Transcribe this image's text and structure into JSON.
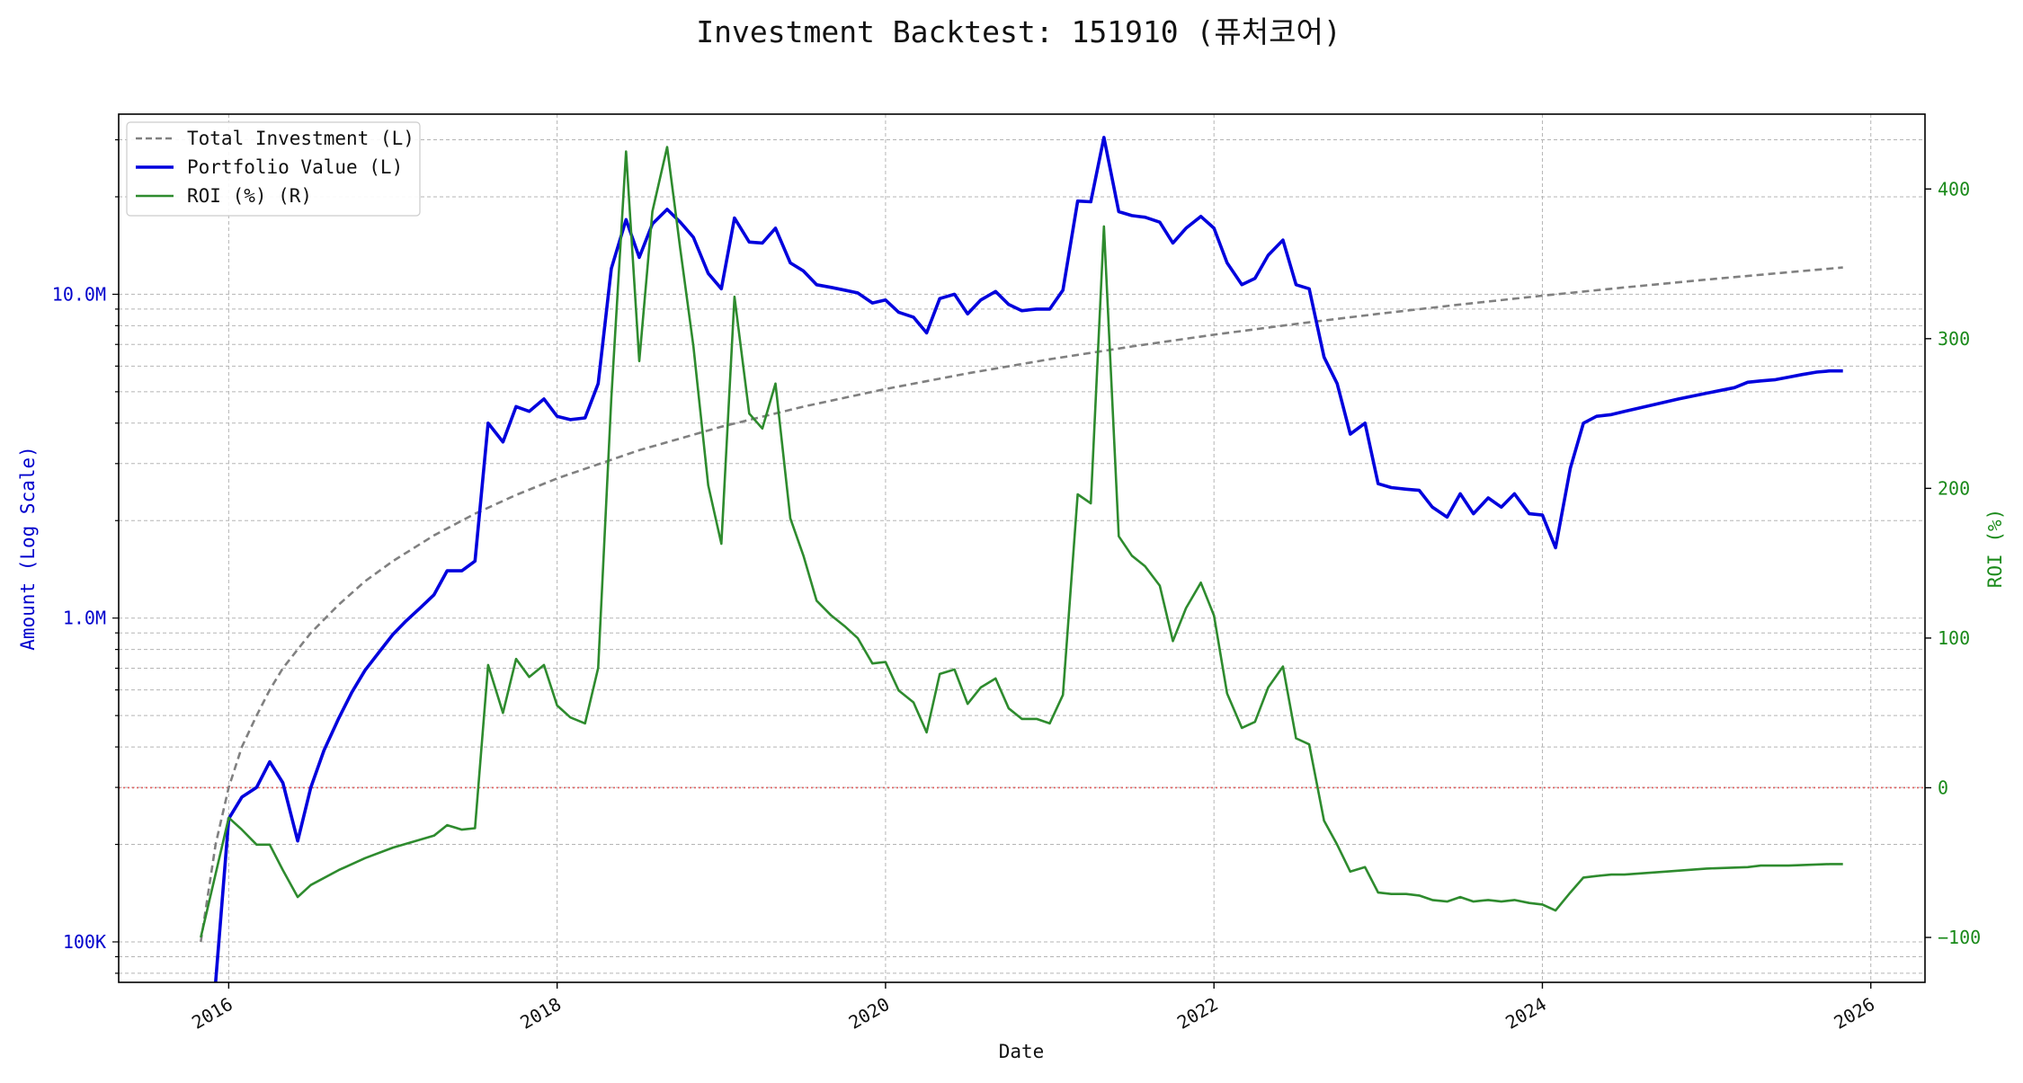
{
  "chart_data": {
    "type": "line",
    "title": "Investment Backtest: 151910 (퓨처코어)",
    "xlabel": "Date",
    "ylabel_left": "Amount (Log Scale)",
    "ylabel_right": "ROI (%)",
    "x_ticks": [
      "2016",
      "2018",
      "2020",
      "2022",
      "2024",
      "2026"
    ],
    "y_left_ticks": [
      "100K",
      "1.0M",
      "10.0M"
    ],
    "y_right_ticks": [
      "−100",
      "0",
      "100",
      "200",
      "300",
      "400"
    ],
    "y_left_scale": "log",
    "y_left_range": [
      75000,
      36000000
    ],
    "y_right_range": [
      -130,
      450
    ],
    "x_range": [
      2015.33,
      2026.33
    ],
    "grid": true,
    "legend_position": "top-left",
    "zero_line": {
      "axis": "right",
      "value": 0,
      "color": "#e06060"
    },
    "colors": {
      "total": "#808080",
      "portfolio": "#0000dd",
      "roi": "#2e8b2e"
    },
    "series": [
      {
        "name": "Total Investment (L)",
        "axis": "left",
        "style": "dashed",
        "x": [
          2015.83,
          2015.92,
          2016.0,
          2016.08,
          2016.17,
          2016.25,
          2016.33,
          2016.42,
          2016.5,
          2016.67,
          2016.83,
          2017.0,
          2017.25,
          2017.5,
          2017.75,
          2018.0,
          2018.5,
          2019.0,
          2019.5,
          2020.0,
          2020.5,
          2021.0,
          2021.5,
          2022.0,
          2022.5,
          2023.0,
          2023.5,
          2024.0,
          2024.5,
          2025.0,
          2025.5,
          2025.83
        ],
        "y": [
          100000,
          200000,
          300000,
          400000,
          500000,
          600000,
          700000,
          800000,
          900000,
          1100000,
          1300000,
          1500000,
          1800000,
          2100000,
          2400000,
          2700000,
          3300000,
          3900000,
          4500000,
          5100000,
          5700000,
          6300000,
          6900000,
          7500000,
          8100000,
          8700000,
          9300000,
          9900000,
          10500000,
          11100000,
          11700000,
          12100000
        ]
      },
      {
        "name": "Portfolio Value (L)",
        "axis": "left",
        "style": "solid",
        "x": [
          2015.92,
          2016.0,
          2016.08,
          2016.17,
          2016.25,
          2016.33,
          2016.42,
          2016.5,
          2016.58,
          2016.67,
          2016.75,
          2016.83,
          2016.92,
          2017.0,
          2017.08,
          2017.17,
          2017.25,
          2017.33,
          2017.42,
          2017.5,
          2017.58,
          2017.67,
          2017.75,
          2017.83,
          2017.92,
          2018.0,
          2018.08,
          2018.17,
          2018.25,
          2018.33,
          2018.42,
          2018.5,
          2018.58,
          2018.67,
          2018.75,
          2018.83,
          2018.92,
          2019.0,
          2019.08,
          2019.17,
          2019.25,
          2019.33,
          2019.42,
          2019.5,
          2019.58,
          2019.67,
          2019.75,
          2019.83,
          2019.92,
          2020.0,
          2020.08,
          2020.17,
          2020.25,
          2020.33,
          2020.42,
          2020.5,
          2020.58,
          2020.67,
          2020.75,
          2020.83,
          2020.92,
          2021.0,
          2021.08,
          2021.17,
          2021.25,
          2021.33,
          2021.42,
          2021.5,
          2021.58,
          2021.67,
          2021.75,
          2021.83,
          2021.92,
          2022.0,
          2022.08,
          2022.17,
          2022.25,
          2022.33,
          2022.42,
          2022.5,
          2022.58,
          2022.67,
          2022.75,
          2022.83,
          2022.92,
          2023.0,
          2023.08,
          2023.17,
          2023.25,
          2023.33,
          2023.42,
          2023.5,
          2023.58,
          2023.67,
          2023.75,
          2023.83,
          2023.92,
          2024.0,
          2024.08,
          2024.17,
          2024.25,
          2024.33,
          2024.42,
          2024.5,
          2024.67,
          2024.83,
          2025.0,
          2025.17,
          2025.25,
          2025.33,
          2025.42,
          2025.5,
          2025.58,
          2025.67,
          2025.75,
          2025.83
        ],
        "y": [
          70000,
          240000,
          280000,
          300000,
          360000,
          310000,
          205000,
          300000,
          390000,
          490000,
          590000,
          690000,
          790000,
          890000,
          980000,
          1080000,
          1180000,
          1400000,
          1400000,
          1500000,
          4000000,
          3500000,
          4500000,
          4350000,
          4750000,
          4200000,
          4100000,
          4150000,
          5300000,
          12000000,
          17000000,
          13000000,
          16500000,
          18300000,
          16700000,
          15000000,
          11600000,
          10400000,
          17200000,
          14500000,
          14400000,
          16000000,
          12500000,
          11800000,
          10700000,
          10500000,
          10300000,
          10100000,
          9400000,
          9600000,
          8800000,
          8500000,
          7600000,
          9700000,
          10000000,
          8700000,
          9600000,
          10200000,
          9300000,
          8900000,
          9000000,
          9000000,
          10300000,
          19400000,
          19300000,
          30500000,
          18000000,
          17500000,
          17300000,
          16700000,
          14400000,
          16000000,
          17400000,
          16000000,
          12500000,
          10700000,
          11200000,
          13200000,
          14700000,
          10700000,
          10400000,
          6400000,
          5300000,
          3700000,
          4000000,
          2600000,
          2530000,
          2500000,
          2480000,
          2200000,
          2050000,
          2420000,
          2100000,
          2350000,
          2200000,
          2420000,
          2100000,
          2080000,
          1650000,
          2900000,
          4000000,
          4200000,
          4250000,
          4350000,
          4550000,
          4750000,
          4950000,
          5150000,
          5350000,
          5400000,
          5450000,
          5550000,
          5650000,
          5750000,
          5800000,
          5800000
        ]
      },
      {
        "name": "ROI (%) (R)",
        "axis": "right",
        "style": "solid",
        "x": [
          2015.83,
          2016.0,
          2016.08,
          2016.17,
          2016.25,
          2016.33,
          2016.42,
          2016.5,
          2016.67,
          2016.83,
          2017.0,
          2017.25,
          2017.33,
          2017.42,
          2017.5,
          2017.58,
          2017.67,
          2017.75,
          2017.83,
          2017.92,
          2018.0,
          2018.08,
          2018.17,
          2018.25,
          2018.33,
          2018.42,
          2018.5,
          2018.58,
          2018.67,
          2018.75,
          2018.83,
          2018.92,
          2019.0,
          2019.08,
          2019.17,
          2019.25,
          2019.33,
          2019.42,
          2019.5,
          2019.58,
          2019.67,
          2019.75,
          2019.83,
          2019.92,
          2020.0,
          2020.08,
          2020.17,
          2020.25,
          2020.33,
          2020.42,
          2020.5,
          2020.58,
          2020.67,
          2020.75,
          2020.83,
          2020.92,
          2021.0,
          2021.08,
          2021.17,
          2021.25,
          2021.33,
          2021.42,
          2021.5,
          2021.58,
          2021.67,
          2021.75,
          2021.83,
          2021.92,
          2022.0,
          2022.08,
          2022.17,
          2022.25,
          2022.33,
          2022.42,
          2022.5,
          2022.58,
          2022.67,
          2022.75,
          2022.83,
          2022.92,
          2023.0,
          2023.08,
          2023.17,
          2023.25,
          2023.33,
          2023.42,
          2023.5,
          2023.58,
          2023.67,
          2023.75,
          2023.83,
          2023.92,
          2024.0,
          2024.08,
          2024.17,
          2024.25,
          2024.33,
          2024.42,
          2024.5,
          2024.75,
          2025.0,
          2025.25,
          2025.33,
          2025.5,
          2025.75,
          2025.83
        ],
        "y": [
          -100,
          -20,
          -28,
          -38,
          -38,
          -55,
          -73,
          -65,
          -55,
          -47,
          -40,
          -32,
          -25,
          -28,
          -27,
          82,
          50,
          86,
          74,
          82,
          55,
          47,
          43,
          80,
          260,
          425,
          285,
          385,
          428,
          360,
          295,
          202,
          163,
          328,
          250,
          240,
          270,
          180,
          155,
          125,
          115,
          108,
          100,
          83,
          84,
          65,
          57,
          37,
          76,
          79,
          56,
          67,
          73,
          53,
          46,
          46,
          43,
          62,
          196,
          190,
          375,
          168,
          155,
          148,
          135,
          98,
          120,
          137,
          115,
          63,
          40,
          44,
          67,
          81,
          33,
          29,
          -22,
          -38,
          -56,
          -53,
          -70,
          -71,
          -71,
          -72,
          -75,
          -76,
          -73,
          -76,
          -75,
          -76,
          -75,
          -77,
          -78,
          -82,
          -70,
          -60,
          -59,
          -58,
          -58,
          -56,
          -54,
          -53,
          -52,
          -52,
          -51,
          -51
        ]
      }
    ]
  }
}
